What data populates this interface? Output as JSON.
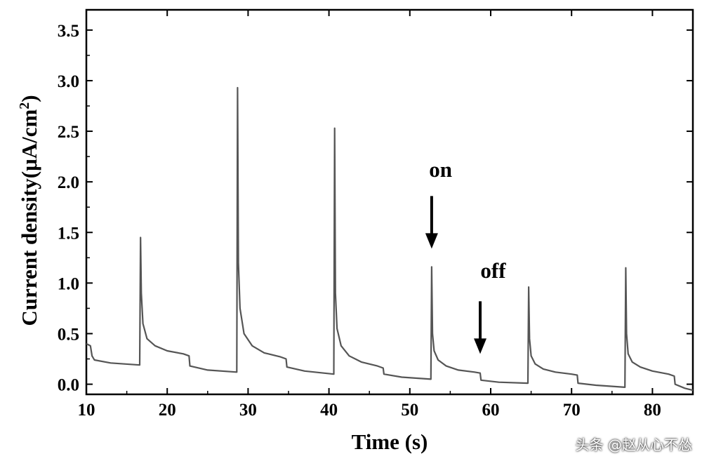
{
  "chart_data": {
    "type": "line",
    "xlabel": "Time (s)",
    "ylabel": "Current density(μA/cm",
    "ylabel_sup": "2",
    "ylabel_close": ")",
    "xlim": [
      10,
      85
    ],
    "ylim": [
      -0.1,
      3.7
    ],
    "xticks": [
      10,
      20,
      30,
      40,
      50,
      60,
      70,
      80
    ],
    "xtick_labels": [
      "10",
      "20",
      "30",
      "40",
      "50",
      "60",
      "70",
      "80"
    ],
    "yticks": [
      0.0,
      0.5,
      1.0,
      1.5,
      2.0,
      2.5,
      3.0,
      3.5
    ],
    "ytick_labels": [
      "0.0",
      "0.5",
      "1.0",
      "1.5",
      "2.0",
      "2.5",
      "3.0",
      "3.5"
    ],
    "line_color": "#555555",
    "series": [
      {
        "x": [
          10.0,
          10.5,
          10.7,
          11.0,
          13.0,
          16.6,
          16.7,
          16.8,
          17.0,
          17.5,
          18.5,
          20.0,
          22.0,
          22.7,
          22.8,
          25.0,
          28.6,
          28.7,
          28.8,
          29.0,
          29.5,
          30.5,
          32.0,
          34.0,
          34.7,
          34.8,
          37.0,
          40.6,
          40.7,
          40.8,
          41.0,
          41.5,
          42.5,
          44.0,
          46.0,
          46.7,
          46.8,
          49.0,
          52.6,
          52.7,
          52.8,
          53.0,
          53.5,
          54.5,
          56.0,
          58.0,
          58.7,
          58.8,
          61.0,
          64.6,
          64.7,
          64.8,
          65.0,
          65.5,
          66.5,
          68.0,
          70.0,
          70.7,
          70.8,
          73.0,
          76.6,
          76.7,
          76.8,
          77.0,
          77.5,
          78.5,
          80.0,
          82.0,
          82.7,
          82.8,
          84.0,
          85.0
        ],
        "y": [
          0.4,
          0.38,
          0.28,
          0.24,
          0.21,
          0.19,
          1.45,
          0.9,
          0.6,
          0.45,
          0.38,
          0.33,
          0.3,
          0.28,
          0.18,
          0.14,
          0.12,
          2.93,
          1.2,
          0.75,
          0.5,
          0.38,
          0.31,
          0.27,
          0.25,
          0.17,
          0.13,
          0.1,
          2.53,
          0.9,
          0.55,
          0.38,
          0.28,
          0.22,
          0.18,
          0.16,
          0.1,
          0.07,
          0.05,
          1.16,
          0.5,
          0.33,
          0.24,
          0.18,
          0.14,
          0.12,
          0.11,
          0.04,
          0.02,
          0.01,
          0.96,
          0.45,
          0.28,
          0.2,
          0.15,
          0.12,
          0.1,
          0.09,
          0.01,
          -0.01,
          -0.03,
          1.15,
          0.5,
          0.3,
          0.22,
          0.17,
          0.13,
          0.1,
          0.08,
          0.0,
          -0.04,
          -0.06
        ]
      }
    ],
    "annotations": [
      {
        "text": "on",
        "arrow_x": 52.7,
        "arrow_y_top": 1.86,
        "arrow_y_bottom": 1.34,
        "text_x": 53.8,
        "text_y": 2.05
      },
      {
        "text": "off",
        "arrow_x": 58.7,
        "arrow_y_top": 0.82,
        "arrow_y_bottom": 0.3,
        "text_x": 60.3,
        "text_y": 1.05
      }
    ]
  },
  "watermark": "头条 @赵从心不怂"
}
